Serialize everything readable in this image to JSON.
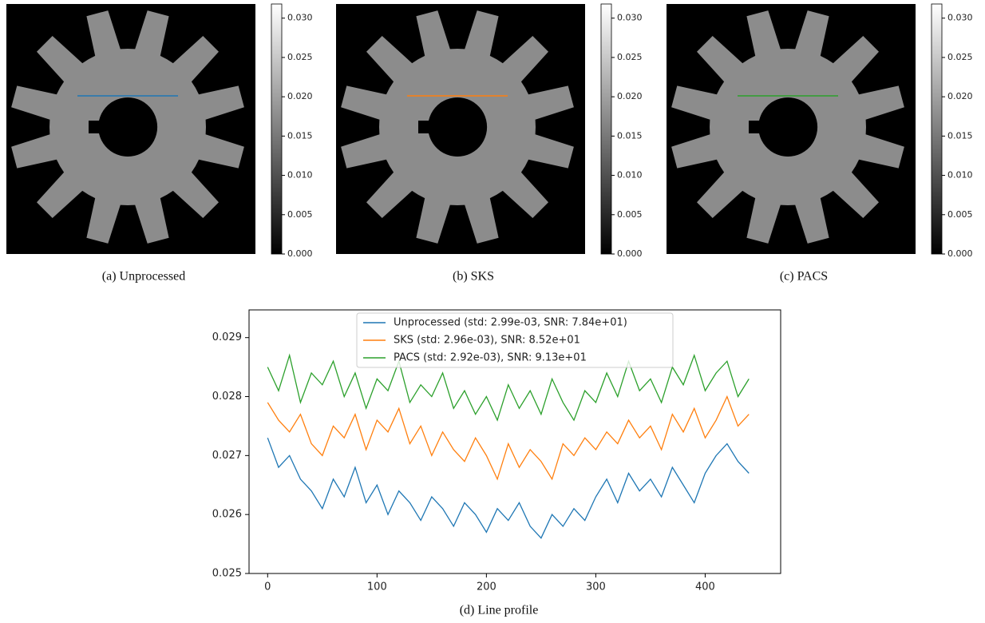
{
  "panels": [
    {
      "caption": "(a) Unprocessed",
      "line_color": "#1f77b4",
      "colorbar": {
        "lim": [
          0,
          0.0318
        ],
        "ticks": [
          {
            "value": 0,
            "label": "0.000"
          },
          {
            "value": 0.005,
            "label": "0.005"
          },
          {
            "value": 0.01,
            "label": "0.010"
          },
          {
            "value": 0.015,
            "label": "0.015"
          },
          {
            "value": 0.02,
            "label": "0.020"
          },
          {
            "value": 0.025,
            "label": "0.025"
          },
          {
            "value": 0.03,
            "label": "0.030"
          }
        ]
      }
    },
    {
      "caption": "(b) SKS",
      "line_color": "#ff7f0e",
      "colorbar": {
        "lim": [
          0,
          0.0318
        ],
        "ticks": [
          {
            "value": 0,
            "label": "0.000"
          },
          {
            "value": 0.005,
            "label": "0.005"
          },
          {
            "value": 0.01,
            "label": "0.010"
          },
          {
            "value": 0.015,
            "label": "0.015"
          },
          {
            "value": 0.02,
            "label": "0.020"
          },
          {
            "value": 0.025,
            "label": "0.025"
          },
          {
            "value": 0.03,
            "label": "0.030"
          }
        ]
      }
    },
    {
      "caption": "(c) PACS",
      "line_color": "#2ca02c",
      "colorbar": {
        "lim": [
          0,
          0.0318
        ],
        "ticks": [
          {
            "value": 0,
            "label": "0.000"
          },
          {
            "value": 0.005,
            "label": "0.005"
          },
          {
            "value": 0.01,
            "label": "0.010"
          },
          {
            "value": 0.015,
            "label": "0.015"
          },
          {
            "value": 0.02,
            "label": "0.020"
          },
          {
            "value": 0.025,
            "label": "0.025"
          },
          {
            "value": 0.03,
            "label": "0.030"
          }
        ]
      }
    }
  ],
  "chart_data": {
    "type": "line",
    "caption": "(d) Line profile",
    "legend": "upper center",
    "x": [
      0,
      10,
      20,
      30,
      40,
      50,
      60,
      70,
      80,
      90,
      100,
      110,
      120,
      130,
      140,
      150,
      160,
      170,
      180,
      190,
      200,
      210,
      220,
      230,
      240,
      250,
      260,
      270,
      280,
      290,
      300,
      310,
      320,
      330,
      340,
      350,
      360,
      370,
      380,
      390,
      400,
      410,
      420,
      430,
      440
    ],
    "xlim": [
      -17,
      469
    ],
    "xticks": [
      0,
      100,
      200,
      300,
      400
    ],
    "ylim": [
      0.025,
      0.02947
    ],
    "yticks": [
      0.025,
      0.026,
      0.027,
      0.028,
      0.029
    ],
    "series": [
      {
        "name": "Unprocessed (std: 2.99e-03, SNR: 7.84e+01)",
        "color": "#1f77b4",
        "values": [
          0.0273,
          0.0268,
          0.027,
          0.0266,
          0.0264,
          0.0261,
          0.0266,
          0.0263,
          0.0268,
          0.0262,
          0.0265,
          0.026,
          0.0264,
          0.0262,
          0.0259,
          0.0263,
          0.0261,
          0.0258,
          0.0262,
          0.026,
          0.0257,
          0.0261,
          0.0259,
          0.0262,
          0.0258,
          0.0256,
          0.026,
          0.0258,
          0.0261,
          0.0259,
          0.0263,
          0.0266,
          0.0262,
          0.0267,
          0.0264,
          0.0266,
          0.0263,
          0.0268,
          0.0265,
          0.0262,
          0.0267,
          0.027,
          0.0272,
          0.0269,
          0.0267
        ]
      },
      {
        "name": "SKS (std: 2.96e-03), SNR: 8.52e+01",
        "color": "#ff7f0e",
        "values": [
          0.0279,
          0.0276,
          0.0274,
          0.0277,
          0.0272,
          0.027,
          0.0275,
          0.0273,
          0.0277,
          0.0271,
          0.0276,
          0.0274,
          0.0278,
          0.0272,
          0.0275,
          0.027,
          0.0274,
          0.0271,
          0.0269,
          0.0273,
          0.027,
          0.0266,
          0.0272,
          0.0268,
          0.0271,
          0.0269,
          0.0266,
          0.0272,
          0.027,
          0.0273,
          0.0271,
          0.0274,
          0.0272,
          0.0276,
          0.0273,
          0.0275,
          0.0271,
          0.0277,
          0.0274,
          0.0278,
          0.0273,
          0.0276,
          0.028,
          0.0275,
          0.0277
        ]
      },
      {
        "name": "PACS (std: 2.92e-03), SNR: 9.13e+01",
        "color": "#2ca02c",
        "values": [
          0.0285,
          0.0281,
          0.0287,
          0.0279,
          0.0284,
          0.0282,
          0.0286,
          0.028,
          0.0284,
          0.0278,
          0.0283,
          0.0281,
          0.0286,
          0.0279,
          0.0282,
          0.028,
          0.0284,
          0.0278,
          0.0281,
          0.0277,
          0.028,
          0.0276,
          0.0282,
          0.0278,
          0.0281,
          0.0277,
          0.0283,
          0.0279,
          0.0276,
          0.0281,
          0.0279,
          0.0284,
          0.028,
          0.0286,
          0.0281,
          0.0283,
          0.0279,
          0.0285,
          0.0282,
          0.0287,
          0.0281,
          0.0284,
          0.0286,
          0.028,
          0.0283
        ]
      }
    ]
  }
}
